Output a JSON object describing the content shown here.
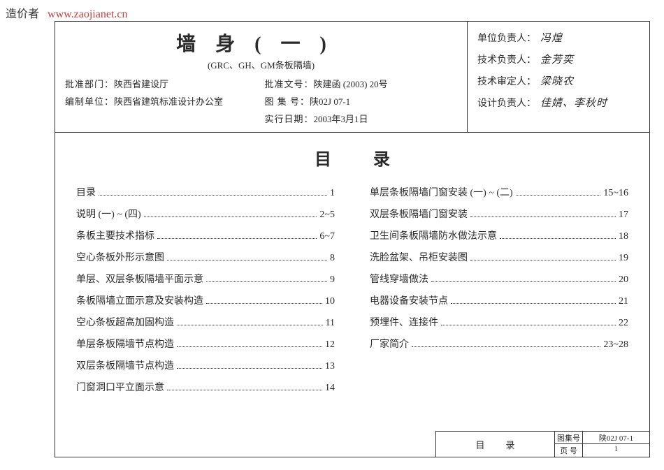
{
  "watermark": {
    "label": "造价者",
    "url": "www.zaojianet.cn"
  },
  "header": {
    "title": "墙身(一)",
    "subtitle": "(GRC、GH、GM条板隔墙)",
    "approve_dept_label": "批准部门：",
    "approve_dept": "陕西省建设厅",
    "approve_doc_label": "批准文号：",
    "approve_doc": "陕建函 (2003) 20号",
    "compile_unit_label": "编制单位：",
    "compile_unit": "陕西省建筑标准设计办公室",
    "atlas_no_label": "图 集 号：",
    "atlas_no": "陕02J 07-1",
    "effective_date_label": "实行日期：",
    "effective_date": "2003年3月1日"
  },
  "signatures": {
    "unit_lead_label": "单位负责人：",
    "unit_lead": "冯煌",
    "tech_lead_label": "技术负责人：",
    "tech_lead": "金芳奕",
    "tech_review_label": "技术审定人：",
    "tech_review": "梁晓农",
    "design_lead_label": "设计负责人：",
    "design_lead": "佳婧、李秋时"
  },
  "toc": {
    "title": "目录",
    "left": [
      {
        "label": "目录",
        "page": "1"
      },
      {
        "label": "说明 (一) ~ (四)",
        "page": "2~5"
      },
      {
        "label": "条板主要技术指标",
        "page": "6~7"
      },
      {
        "label": "空心条板外形示意图",
        "page": "8"
      },
      {
        "label": "单层、双层条板隔墙平面示意",
        "page": "9"
      },
      {
        "label": "条板隔墙立面示意及安装构造",
        "page": "10"
      },
      {
        "label": "空心条板超高加固构造",
        "page": "11"
      },
      {
        "label": "单层条板隔墙节点构造",
        "page": "12"
      },
      {
        "label": "双层条板隔墙节点构造",
        "page": "13"
      },
      {
        "label": "门窗洞口平立面示意",
        "page": "14"
      }
    ],
    "right": [
      {
        "label": "单层条板隔墙门窗安装 (一) ~ (二)",
        "page": "15~16"
      },
      {
        "label": "双层条板隔墙门窗安装",
        "page": "17"
      },
      {
        "label": "卫生间条板隔墙防水做法示意",
        "page": "18"
      },
      {
        "label": "洗脸盆架、吊柜安装图",
        "page": "19"
      },
      {
        "label": "管线穿墙做法",
        "page": "20"
      },
      {
        "label": "电器设备安装节点",
        "page": "21"
      },
      {
        "label": "预埋件、连接件",
        "page": "22"
      },
      {
        "label": "厂家简介",
        "page": "23~28"
      }
    ]
  },
  "footer": {
    "left": "目录",
    "atlas_label": "图集号",
    "atlas_val": "陕02J 07-1",
    "page_label": "页 号",
    "page_val": "1"
  }
}
